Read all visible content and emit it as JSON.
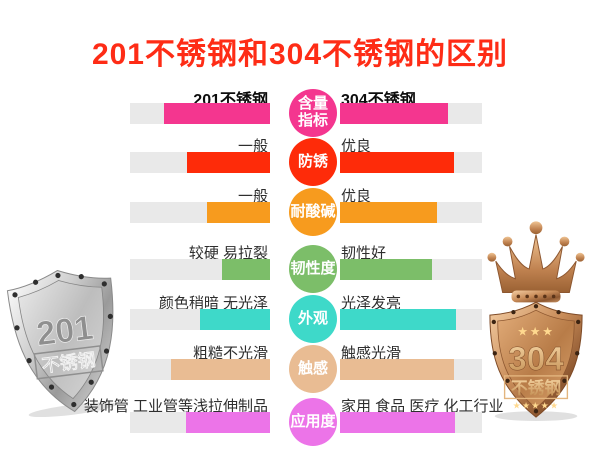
{
  "title": {
    "text": "201不锈钢和304不锈钢的区别",
    "color": "#fe2c16"
  },
  "track_color": "#e9e9e9",
  "rows": [
    {
      "category": "含量\n指标",
      "color": "#f4368f",
      "left_label": "201不锈钢",
      "left_fill": 76,
      "right_label": "304不锈钢",
      "right_fill": 76
    },
    {
      "category": "防锈",
      "color": "#fe2b09",
      "left_label": "一般",
      "left_fill": 59,
      "right_label": "优良",
      "right_fill": 80
    },
    {
      "category": "耐酸碱",
      "color": "#f79b1e",
      "left_label": "一般",
      "left_fill": 45,
      "right_label": "优良",
      "right_fill": 68
    },
    {
      "category": "韧性度",
      "color": "#7cbe69",
      "left_label": "较硬 易拉裂",
      "left_fill": 34,
      "right_label": "韧性好",
      "right_fill": 65
    },
    {
      "category": "外观",
      "color": "#3ed9c9",
      "left_label": "颜色稍暗 无光泽",
      "left_fill": 50,
      "right_label": "光泽发亮",
      "right_fill": 82
    },
    {
      "category": "触感",
      "color": "#e9bc93",
      "left_label": "粗糙不光滑",
      "left_fill": 71,
      "right_label": "触感光滑",
      "right_fill": 80
    },
    {
      "category": "应用度",
      "color": "#ec74e8",
      "left_label": "装饰管 工业管等浅拉伸制品",
      "left_fill": 60,
      "right_label": "家用 食品 医疗 化工行业",
      "right_fill": 81
    }
  ],
  "left_badge": {
    "number": "201",
    "name": "不锈钢"
  },
  "right_badge": {
    "number": "304",
    "name": "不锈钢",
    "stars_top": "★★★",
    "stars_bottom": "★★★★★"
  }
}
